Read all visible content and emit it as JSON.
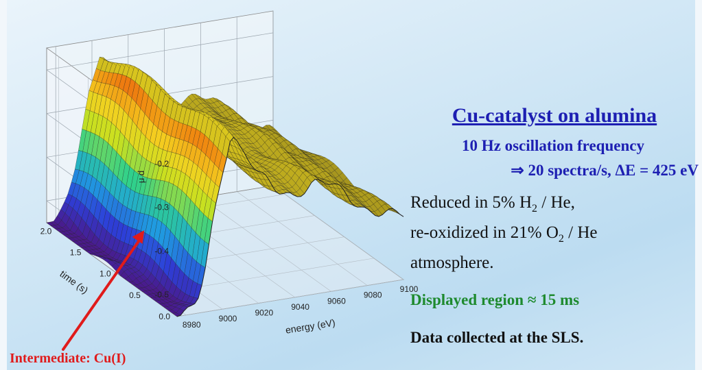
{
  "chart_data": {
    "type": "surface",
    "xlabel": "energy (eV)",
    "ylabel": "time (s)",
    "zlabel": "μ d",
    "x_ticks": [
      "8980",
      "9000",
      "9020",
      "9040",
      "9060",
      "9080",
      "9100"
    ],
    "y_ticks": [
      "0.0",
      "0.5",
      "1.0",
      "1.5",
      "2.0"
    ],
    "z_ticks": [
      "-0.5",
      "-0.4",
      "-0.3",
      "-0.2"
    ],
    "xlim": [
      8975,
      9100
    ],
    "ylim": [
      0,
      2.2
    ],
    "zlim": [
      -0.55,
      -0.15
    ],
    "profile_energy": [
      8975,
      8980,
      8983,
      8986,
      8990,
      8995,
      9000,
      9005,
      9010,
      9020,
      9030,
      9040,
      9050,
      9060,
      9070,
      9080,
      9090,
      9100
    ],
    "profile_mud": [
      -0.56,
      -0.55,
      -0.54,
      -0.52,
      -0.45,
      -0.33,
      -0.23,
      -0.15,
      -0.2,
      -0.26,
      -0.29,
      -0.31,
      -0.3,
      -0.31,
      -0.34,
      -0.37,
      -0.39,
      -0.41
    ],
    "colormap": [
      "#4a1a8a",
      "#2d3fd8",
      "#1fa0e0",
      "#2fd08c",
      "#c8e020",
      "#f4d020",
      "#f08a10",
      "#e02010"
    ],
    "annotation": "Intermediate: Cu(I)",
    "annotation_color": "#e01b1b"
  },
  "slide": {
    "title": "Cu-catalyst on alumina",
    "subtitle1": "10 Hz oscillation frequency",
    "subtitle2": "⇒  20 spectra/s, ΔE = 425 eV",
    "desc_line1_a": "Reduced in 5% H",
    "desc_line1_sub": "2",
    "desc_line1_b": " / He,",
    "desc_line2_a": "re-oxidized in 21% O",
    "desc_line2_sub": "2",
    "desc_line2_b": " / He",
    "desc_line3": "atmosphere.",
    "green_line": "Displayed region ≈ 15 ms",
    "black_line": "Data collected at the SLS.",
    "title_color": "#1d1fb2",
    "green_color": "#1e8a2e"
  }
}
